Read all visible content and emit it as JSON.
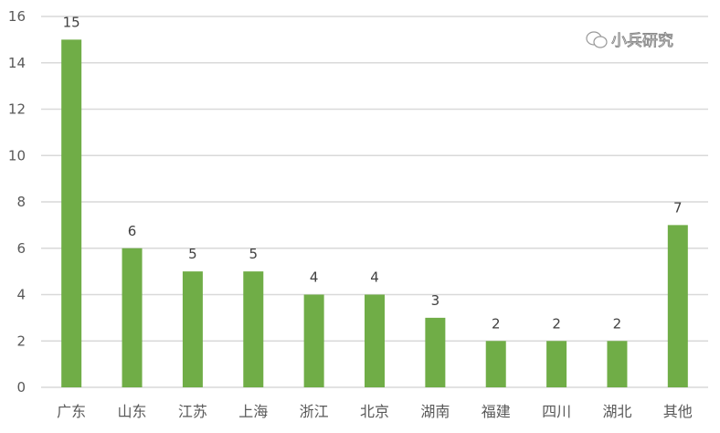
{
  "chart_data": {
    "type": "bar",
    "categories": [
      "广东",
      "山东",
      "江苏",
      "上海",
      "浙江",
      "北京",
      "湖南",
      "福建",
      "四川",
      "湖北",
      "其他"
    ],
    "values": [
      15,
      6,
      5,
      5,
      4,
      4,
      3,
      2,
      2,
      2,
      7
    ],
    "ylim": [
      0,
      16
    ],
    "yticks": [
      0,
      2,
      4,
      6,
      8,
      10,
      12,
      14,
      16
    ],
    "grid": true,
    "data_labels": true,
    "bar_color": "#70ad47",
    "title": "",
    "xlabel": "",
    "ylabel": ""
  },
  "watermark": {
    "text": "小兵研究",
    "icon": "wechat-icon"
  }
}
